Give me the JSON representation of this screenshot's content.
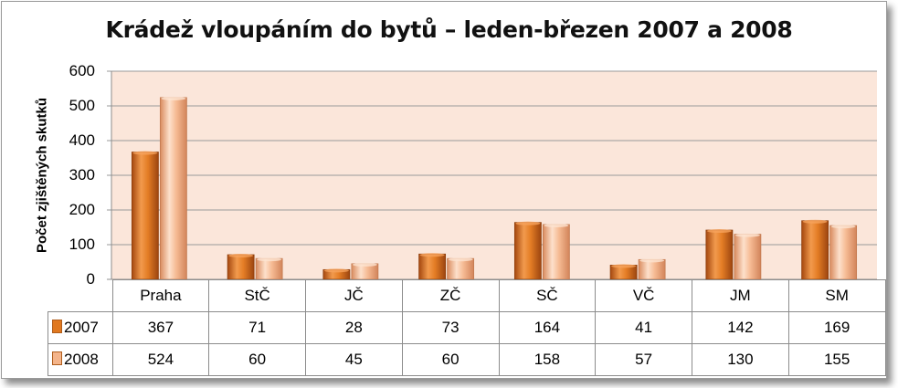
{
  "chart_data": {
    "type": "bar",
    "title": "Krádež vloupáním do bytů – leden-březen 2007 a 2008",
    "ylabel": "Počet zjištěných skutků",
    "xlabel": "",
    "ylim": [
      0,
      600
    ],
    "yticks": [
      "0",
      "100",
      "200",
      "300",
      "400",
      "500",
      "600"
    ],
    "grid": true,
    "legend": "table-left",
    "categories": [
      "Praha",
      "StČ",
      "JČ",
      "ZČ",
      "SČ",
      "VČ",
      "JM",
      "SM"
    ],
    "series": [
      {
        "name": "2007",
        "values": [
          367,
          71,
          28,
          73,
          164,
          41,
          142,
          169
        ],
        "color": "#e0781f"
      },
      {
        "name": "2008",
        "values": [
          524,
          60,
          45,
          60,
          158,
          57,
          130,
          155
        ],
        "color": "#f4b48a"
      }
    ],
    "plot_background": "#fbe6da"
  }
}
